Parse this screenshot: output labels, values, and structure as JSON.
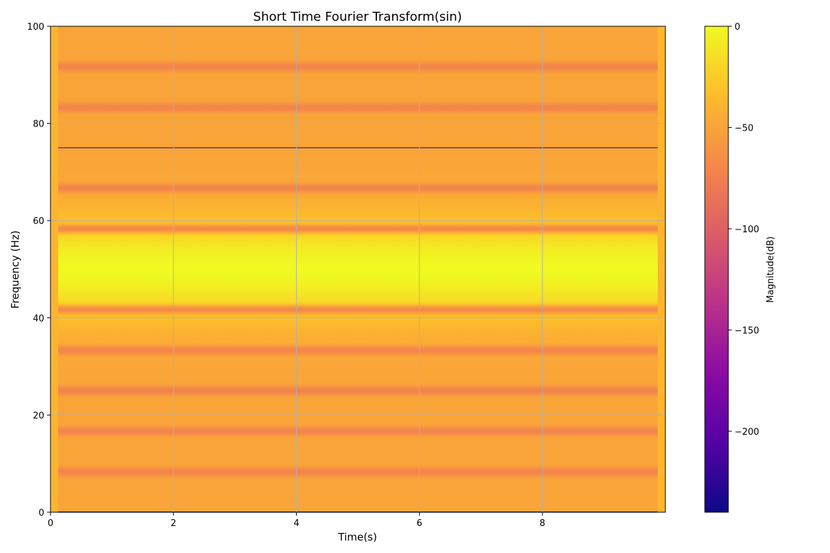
{
  "chart_data": {
    "type": "heatmap",
    "title": "Short Time Fourier Transform(sin)",
    "xlabel": "Time(s)",
    "ylabel": "Frequency (Hz)",
    "xlim": [
      0,
      10
    ],
    "ylim": [
      0,
      100
    ],
    "x_ticks": [
      0,
      2,
      4,
      6,
      8
    ],
    "y_ticks": [
      0,
      20,
      40,
      60,
      80,
      100
    ],
    "grid": true,
    "data_x_extent": [
      0.125,
      9.875
    ],
    "colormap": "plasma",
    "colorbar": {
      "label": "Magnitude(dB)",
      "range": [
        -240,
        0
      ],
      "ticks": [
        0,
        -50,
        -100,
        -150,
        -200
      ]
    },
    "peak_frequency_hz": 50,
    "peak_magnitude_db": 0,
    "floor_magnitude_db": -50,
    "minima_frequencies_hz": [
      0,
      8.3,
      16.7,
      25,
      33.3,
      41.7,
      58.3,
      66.7,
      75,
      83.3,
      91.7
    ],
    "minima_magnitudes_db": [
      -240,
      -75,
      -75,
      -75,
      -75,
      -75,
      -75,
      -75,
      -240,
      -75,
      -75
    ]
  }
}
